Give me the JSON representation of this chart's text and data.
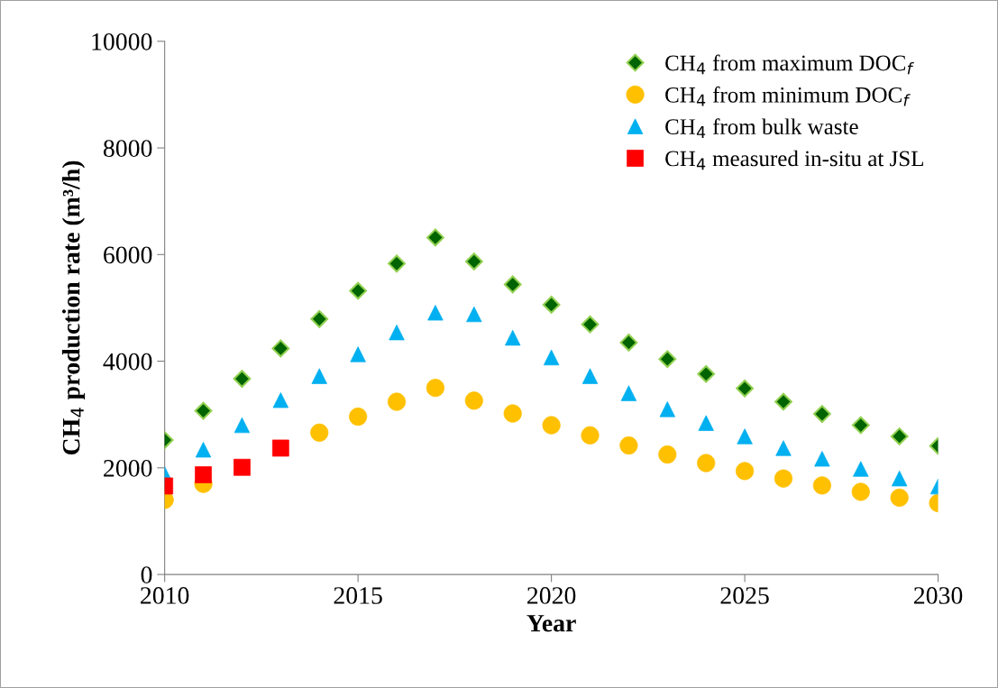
{
  "chart_data": {
    "type": "scatter",
    "xlabel": "Year",
    "ylabel": "CH$_{4}$ production rate (m³/h)",
    "xlim": [
      2010,
      2030
    ],
    "xticks": [
      2010,
      2015,
      2020,
      2025,
      2030
    ],
    "ylim": [
      0,
      10000
    ],
    "yticks": [
      0,
      2000,
      4000,
      6000,
      8000,
      10000
    ],
    "grid": false,
    "legend": "top right",
    "x": [
      2010,
      2011,
      2012,
      2013,
      2014,
      2015,
      2016,
      2017,
      2018,
      2019,
      2020,
      2021,
      2022,
      2023,
      2024,
      2025,
      2026,
      2027,
      2028,
      2029,
      2030
    ],
    "series": [
      {
        "name": "CH$_{4}$ from maximum DOC$_{f}$",
        "color": "#006400",
        "marker": "diamond",
        "values": [
          2520,
          3070,
          3670,
          4240,
          4790,
          5320,
          5830,
          6320,
          5870,
          5440,
          5060,
          4690,
          4350,
          4040,
          3760,
          3490,
          3240,
          3010,
          2800,
          2590,
          2410
        ]
      },
      {
        "name": "CH$_{4}$ from minimum DOC$_{f}$",
        "color": "#ffc000",
        "marker": "circle",
        "values": [
          1400,
          1700,
          null,
          null,
          2660,
          2960,
          3240,
          3500,
          3260,
          3020,
          2800,
          2610,
          2420,
          2250,
          2090,
          1940,
          1800,
          1670,
          1550,
          1440,
          1340
        ]
      },
      {
        "name": "CH$_{4}$ from bulk waste",
        "color": "#00b0f0",
        "marker": "triangle",
        "values": [
          1880,
          2340,
          2800,
          3270,
          3720,
          4130,
          4540,
          4910,
          4880,
          4440,
          4070,
          3720,
          3400,
          3100,
          2840,
          2590,
          2370,
          2170,
          1980,
          1800,
          1650
        ]
      },
      {
        "name": "CH$_{4}$ measured in-situ at JSL",
        "color": "#ff0000",
        "marker": "square",
        "x": [
          2010,
          2011,
          2012,
          2013
        ],
        "values": [
          1660,
          1870,
          2010,
          2370
        ]
      }
    ]
  }
}
